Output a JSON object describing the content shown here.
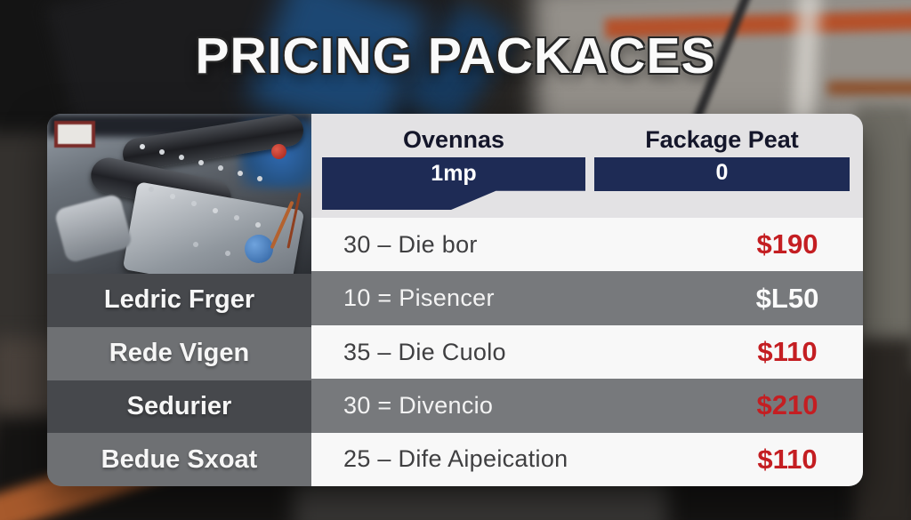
{
  "title": "PRICING PACKACES",
  "table": {
    "columns": [
      {
        "header": "Ovennas",
        "badge": "1mp"
      },
      {
        "header": "Fackage Peat",
        "badge": "0"
      }
    ],
    "rows": [
      {
        "label": "",
        "service": "30 – Die bor",
        "price": "$190",
        "price_color": "red",
        "row_shade": "light"
      },
      {
        "label": "Ledric Frger",
        "service": "10 = Pisencer",
        "price": "$L50",
        "price_color": "white",
        "row_shade": "gray"
      },
      {
        "label": "Rede Vigen",
        "service": "35 – Die Cuolo",
        "price": "$110",
        "price_color": "red",
        "row_shade": "light"
      },
      {
        "label": "Sedurier",
        "service": "30 = Divencio",
        "price": "$210",
        "price_color": "red",
        "row_shade": "gray"
      },
      {
        "label": "Bedue Sxoat",
        "service": "25 – Dife Aipeication",
        "price": "$110",
        "price_color": "red",
        "row_shade": "light"
      }
    ]
  },
  "colors": {
    "navy_bar": "#1e2b55",
    "header_text": "#14162a",
    "price_red": "#c41e22",
    "row_gray": "#77797c",
    "band_dark": "#46484c",
    "band_mid": "#6e7073",
    "card_header_bg": "#e3e2e4",
    "row_light": "#f8f8f8",
    "title_white": "#fafafa"
  },
  "chart_data": {
    "type": "table",
    "title": "PRICING PACKACES",
    "columns": [
      "Ovennas",
      "Fackage Peat"
    ],
    "sub_headers": [
      "1mp",
      "0"
    ],
    "row_labels": [
      "",
      "Ledric Frger",
      "Rede Vigen",
      "Sedurier",
      "Bedue Sxoat"
    ],
    "services": [
      "30 – Die bor",
      "10 = Pisencer",
      "35 – Die Cuolo",
      "30 = Divencio",
      "25 – Dife Aipeication"
    ],
    "prices": [
      "$190",
      "$L50",
      "$110",
      "$210",
      "$110"
    ]
  }
}
